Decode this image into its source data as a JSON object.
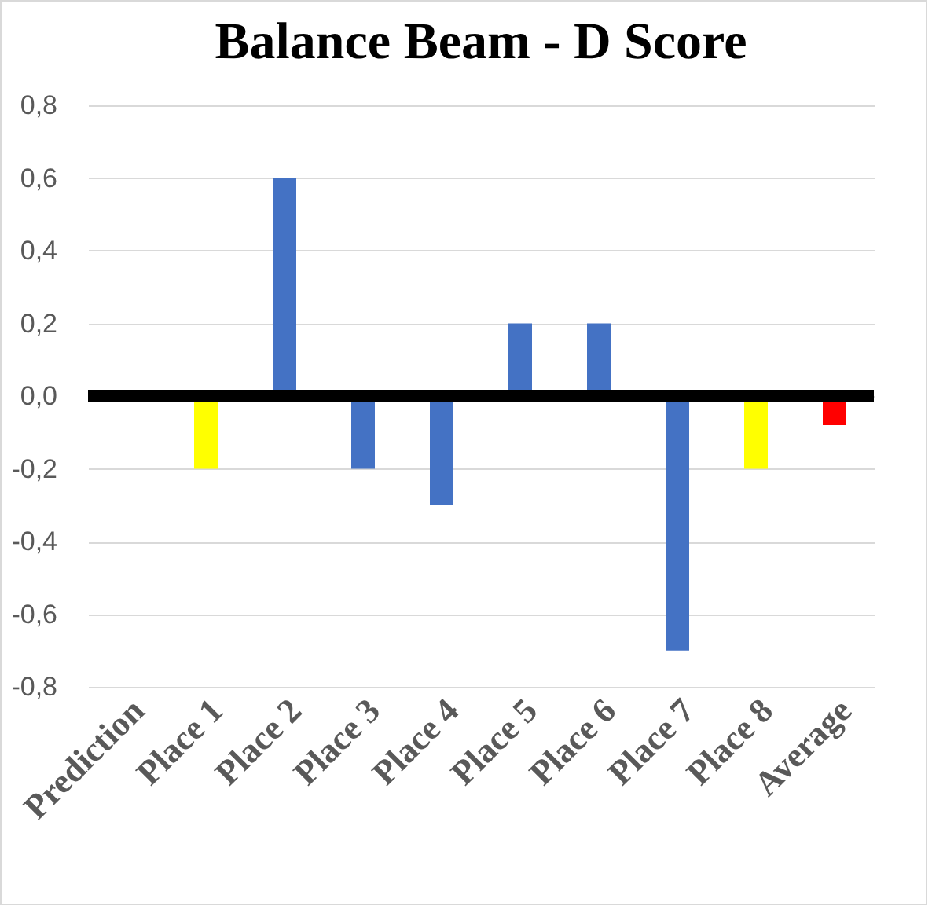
{
  "chart_data": {
    "type": "bar",
    "title": "Balance Beam - D Score",
    "categories": [
      "Prediction",
      "Place 1",
      "Place 2",
      "Place 3",
      "Place 4",
      "Place 5",
      "Place 6",
      "Place 7",
      "Place 8",
      "Average"
    ],
    "values": [
      0,
      -0.2,
      0.6,
      -0.2,
      -0.3,
      0.2,
      0.2,
      -0.7,
      -0.2,
      -0.08
    ],
    "colors": [
      "#4472c4",
      "#ffff00",
      "#4472c4",
      "#4472c4",
      "#4472c4",
      "#4472c4",
      "#4472c4",
      "#4472c4",
      "#ffff00",
      "#ff0000"
    ],
    "ylim": [
      -0.8,
      0.8
    ],
    "yticks": [
      {
        "value": -0.8,
        "label": "-0,8"
      },
      {
        "value": -0.6,
        "label": "-0,6"
      },
      {
        "value": -0.4,
        "label": "-0,4"
      },
      {
        "value": -0.2,
        "label": "-0,2"
      },
      {
        "value": 0,
        "label": "0,0"
      },
      {
        "value": 0.2,
        "label": "0,2"
      },
      {
        "value": 0.4,
        "label": "0,4"
      },
      {
        "value": 0.6,
        "label": "0,6"
      },
      {
        "value": 0.8,
        "label": "0,8"
      }
    ],
    "ref_lines": [
      {
        "axis": "y",
        "value": 0,
        "color": "#000000"
      }
    ],
    "grid": "y",
    "legend": false
  }
}
